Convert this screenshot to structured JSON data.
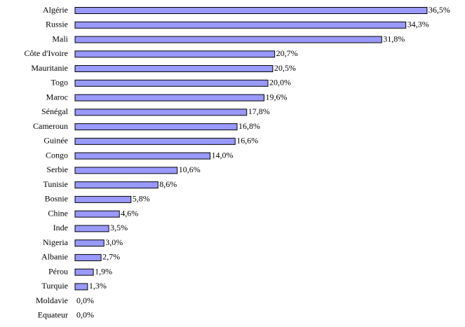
{
  "chart_data": {
    "type": "bar",
    "orientation": "horizontal",
    "color": "#9999ff",
    "categories": [
      "Algérie",
      "Russie",
      "Mali",
      "Côte d'Ivoire",
      "Mauritanie",
      "Togo",
      "Maroc",
      "Sénégal",
      "Cameroun",
      "Guinée",
      "Congo",
      "Serbie",
      "Tunisie",
      "Bosnie",
      "Chine",
      "Inde",
      "Nigeria",
      "Albanie",
      "Pérou",
      "Turquie",
      "Moldavie",
      "Equateur"
    ],
    "values": [
      36.5,
      34.3,
      31.8,
      20.7,
      20.5,
      20.0,
      19.6,
      17.8,
      16.8,
      16.6,
      14.0,
      10.6,
      8.6,
      5.8,
      4.6,
      3.5,
      3.0,
      2.7,
      1.9,
      1.3,
      0.0,
      0.0
    ],
    "value_labels": [
      "36,5%",
      "34,3%",
      "31,8%",
      "20,7%",
      "20,5%",
      "20,0%",
      "19,6%",
      "17,8%",
      "16,8%",
      "16,6%",
      "14,0%",
      "10,6%",
      "8,6%",
      "5,8%",
      "4,6%",
      "3,5%",
      "3,0%",
      "2,7%",
      "1,9%",
      "1,3%",
      "0,0%",
      "0,0%"
    ]
  }
}
